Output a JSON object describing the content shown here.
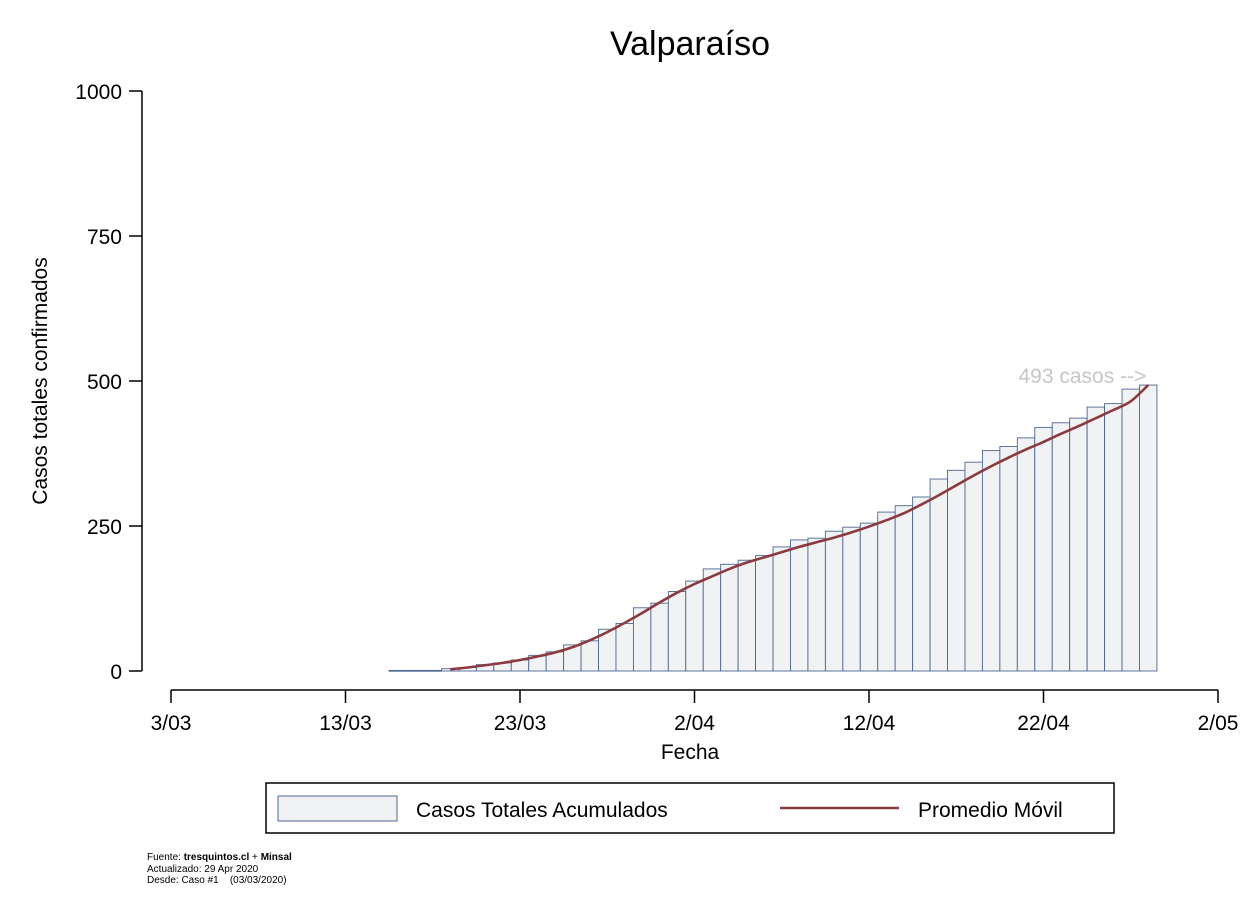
{
  "chart_data": {
    "type": "bar",
    "title": "Valparaíso",
    "xlabel": "Fecha",
    "ylabel": "Casos totales confirmados",
    "ylim": [
      0,
      1000
    ],
    "yticks": [
      0,
      250,
      500,
      750,
      1000
    ],
    "ytick_labels": [
      "0",
      "250",
      "500",
      "750",
      "1000"
    ],
    "xlim": [
      "2020-03-03",
      "2020-05-02"
    ],
    "xtick_dates": [
      "2020-03-03",
      "2020-03-13",
      "2020-03-23",
      "2020-04-02",
      "2020-04-12",
      "2020-04-22",
      "2020-05-02"
    ],
    "xtick_labels": [
      "3/03",
      "13/03",
      "23/03",
      "2/04",
      "12/04",
      "22/04",
      "2/05"
    ],
    "grid": false,
    "legend_position": "bottom",
    "series": [
      {
        "name": "Casos Totales Acumulados",
        "kind": "bar",
        "color": "#f1f2f3",
        "edge_color": "#4d6791",
        "x": [
          "2020-03-16",
          "2020-03-17",
          "2020-03-18",
          "2020-03-19",
          "2020-03-20",
          "2020-03-21",
          "2020-03-22",
          "2020-03-23",
          "2020-03-24",
          "2020-03-25",
          "2020-03-26",
          "2020-03-27",
          "2020-03-28",
          "2020-03-29",
          "2020-03-30",
          "2020-03-31",
          "2020-04-01",
          "2020-04-02",
          "2020-04-03",
          "2020-04-04",
          "2020-04-05",
          "2020-04-06",
          "2020-04-07",
          "2020-04-08",
          "2020-04-09",
          "2020-04-10",
          "2020-04-11",
          "2020-04-12",
          "2020-04-13",
          "2020-04-14",
          "2020-04-15",
          "2020-04-16",
          "2020-04-17",
          "2020-04-18",
          "2020-04-19",
          "2020-04-20",
          "2020-04-21",
          "2020-04-22",
          "2020-04-23",
          "2020-04-24",
          "2020-04-25",
          "2020-04-26",
          "2020-04-27",
          "2020-04-28"
        ],
        "values": [
          1,
          1,
          1,
          4,
          6,
          11,
          14,
          19,
          27,
          33,
          45,
          52,
          72,
          82,
          109,
          117,
          137,
          155,
          176,
          184,
          191,
          199,
          214,
          226,
          229,
          241,
          248,
          255,
          274,
          285,
          300,
          331,
          346,
          360,
          380,
          387,
          402,
          420,
          428,
          436,
          455,
          461,
          486,
          493
        ]
      },
      {
        "name": "Promedio Móvil",
        "kind": "line",
        "color": "#8b3a3f",
        "x": [
          "2020-03-19",
          "2020-03-20",
          "2020-03-21",
          "2020-03-22",
          "2020-03-23",
          "2020-03-24",
          "2020-03-25",
          "2020-03-26",
          "2020-03-27",
          "2020-03-28",
          "2020-03-29",
          "2020-03-30",
          "2020-03-31",
          "2020-04-01",
          "2020-04-02",
          "2020-04-03",
          "2020-04-04",
          "2020-04-05",
          "2020-04-06",
          "2020-04-07",
          "2020-04-08",
          "2020-04-09",
          "2020-04-10",
          "2020-04-11",
          "2020-04-12",
          "2020-04-13",
          "2020-04-14",
          "2020-04-15",
          "2020-04-16",
          "2020-04-17",
          "2020-04-18",
          "2020-04-19",
          "2020-04-20",
          "2020-04-21",
          "2020-04-22",
          "2020-04-23",
          "2020-04-24",
          "2020-04-25",
          "2020-04-26",
          "2020-04-27",
          "2020-04-28"
        ],
        "values": [
          3,
          6,
          10,
          14,
          19,
          25,
          32,
          41,
          53,
          67,
          83,
          100,
          118,
          135,
          150,
          163,
          176,
          187,
          196,
          205,
          214,
          222,
          230,
          239,
          249,
          260,
          272,
          287,
          303,
          320,
          337,
          353,
          368,
          382,
          395,
          409,
          422,
          436,
          450,
          465,
          493
        ]
      }
    ],
    "annotations": [
      {
        "text": "493 casos -->",
        "color": "#c6c6c6",
        "x": "2020-04-24",
        "y": 510
      }
    ]
  },
  "footer": {
    "fuente_label": "Fuente: ",
    "fuente_value_1": "tresquintos.cl",
    "fuente_sep": " + ",
    "fuente_value_2": "Minsal",
    "actualizado": "Actualizado: 29 Apr 2020",
    "desde": "Desde: Caso #1    (03/03/2020)"
  }
}
